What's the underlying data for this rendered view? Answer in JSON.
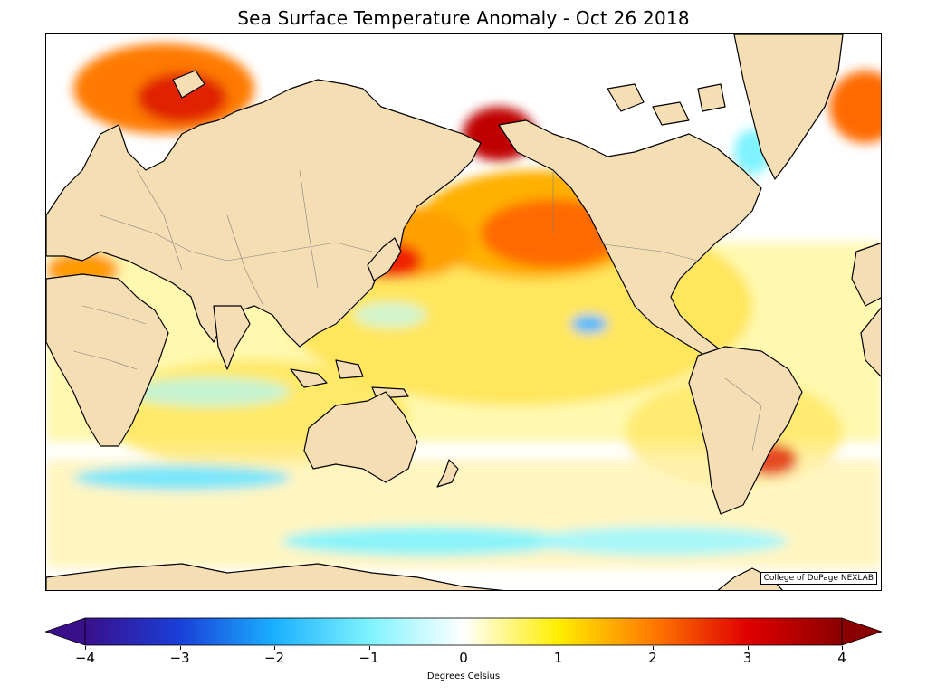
{
  "title": "Sea Surface Temperature Anomaly - Oct 26 2018",
  "credit": "College of DuPage NEXLAB",
  "colorbar": {
    "label": "Degrees Celsius",
    "min": -4,
    "max": 4,
    "ticks": [
      {
        "value": -4,
        "label": "−4"
      },
      {
        "value": -3,
        "label": "−3"
      },
      {
        "value": -2,
        "label": "−2"
      },
      {
        "value": -1,
        "label": "−1"
      },
      {
        "value": 0,
        "label": "0"
      },
      {
        "value": 1,
        "label": "1"
      },
      {
        "value": 2,
        "label": "2"
      },
      {
        "value": 3,
        "label": "3"
      },
      {
        "value": 4,
        "label": "4"
      }
    ],
    "stops": [
      {
        "value": -4,
        "color": "#3a0f8c"
      },
      {
        "value": -3,
        "color": "#1a3fd8"
      },
      {
        "value": -2,
        "color": "#1ab0ff"
      },
      {
        "value": -1,
        "color": "#7ef3ff"
      },
      {
        "value": 0,
        "color": "#ffffff"
      },
      {
        "value": 1,
        "color": "#ffee00"
      },
      {
        "value": 2,
        "color": "#ff7a00"
      },
      {
        "value": 3,
        "color": "#e00000"
      },
      {
        "value": 4,
        "color": "#8a0000"
      }
    ]
  },
  "map_colors": {
    "land": "#f5deb3",
    "coastline": "#000000",
    "borders": "#808080",
    "ocean_neutral": "#ffffff"
  }
}
